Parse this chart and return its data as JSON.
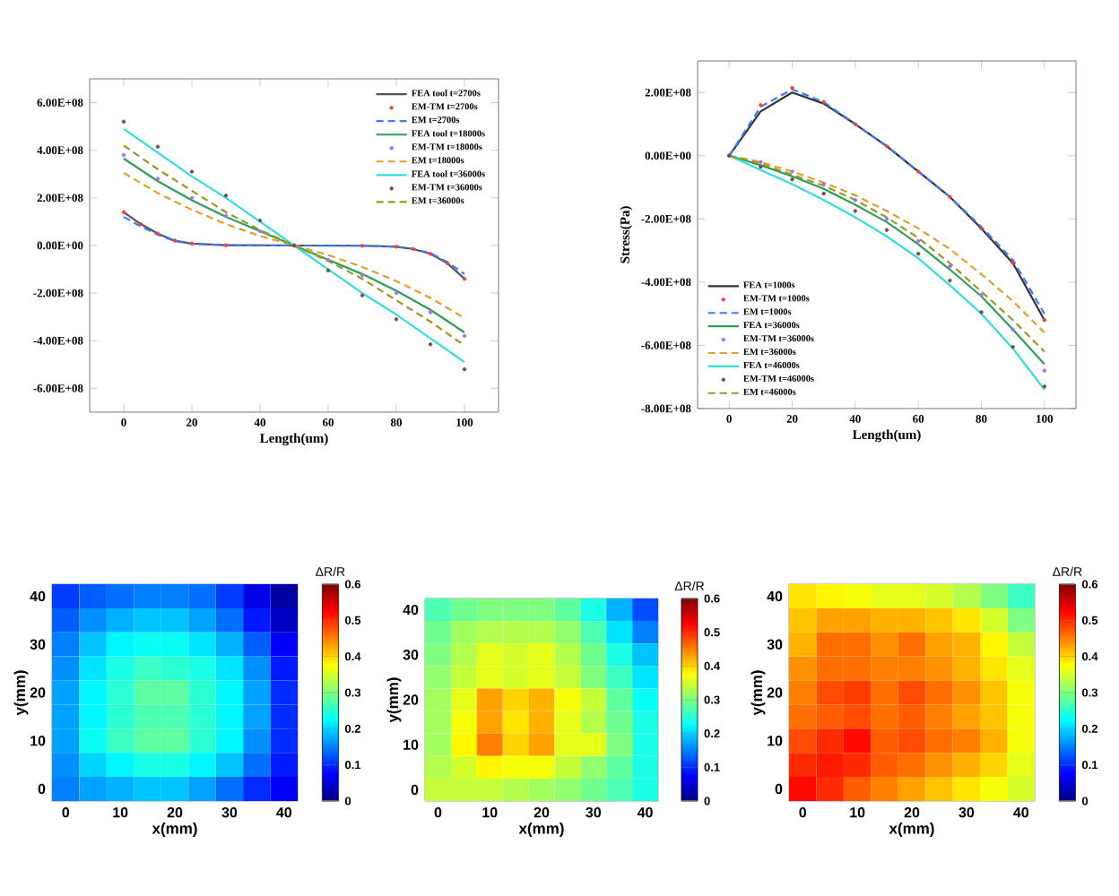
{
  "chart_data": [
    {
      "type": "line",
      "xlabel": "Length(um)",
      "xlim": [
        -10,
        110
      ],
      "xticks": [
        0,
        20,
        40,
        60,
        80,
        100
      ],
      "ylim": [
        -700000000.0,
        700000000.0
      ],
      "yticks": [
        {
          "value": -600000000.0,
          "label": "-6.00E+08"
        },
        {
          "value": -400000000.0,
          "label": "-4.00E+08"
        },
        {
          "value": -200000000.0,
          "label": "-2.00E+08"
        },
        {
          "value": 0,
          "label": "0.00E+00"
        },
        {
          "value": 200000000.0,
          "label": "2.00E+08"
        },
        {
          "value": 400000000.0,
          "label": "4.00E+08"
        },
        {
          "value": 600000000.0,
          "label": "6.00E+08"
        }
      ],
      "legend": "top right",
      "x": [
        0,
        10,
        20,
        30,
        40,
        50,
        60,
        70,
        80,
        90,
        100
      ],
      "series": [
        {
          "name": "FEA tool t=2700s",
          "color": "#555555",
          "x": [
            0,
            5,
            10,
            15,
            20,
            30,
            50,
            70,
            80,
            85,
            90,
            95,
            100
          ],
          "values": [
            140000000.0,
            90000000.0,
            50000000.0,
            20000000.0,
            8000000.0,
            1000000.0,
            0,
            -1000000.0,
            -5000000.0,
            -15000000.0,
            -35000000.0,
            -75000000.0,
            -140000000.0
          ]
        },
        {
          "name": "EM-TM t=2700s",
          "type": "scatter",
          "marker": "circle",
          "color": "#ff3b3b",
          "x": [
            0,
            5,
            10,
            15,
            20,
            30,
            50,
            70,
            80,
            85,
            90,
            95,
            100
          ],
          "values": [
            140000000.0,
            90000000.0,
            50000000.0,
            20000000.0,
            8000000.0,
            1000000.0,
            0,
            -1000000.0,
            -5000000.0,
            -15000000.0,
            -35000000.0,
            -75000000.0,
            -140000000.0
          ]
        },
        {
          "name": "EM t=2700s",
          "line_style": "dashed",
          "color": "#3a7bff",
          "x": [
            0,
            5,
            10,
            15,
            20,
            30,
            50,
            70,
            80,
            85,
            90,
            95,
            100
          ],
          "values": [
            120000000.0,
            80000000.0,
            45000000.0,
            18000000.0,
            7000000.0,
            1000000.0,
            0,
            -1000000.0,
            -5000000.0,
            -14000000.0,
            -32000000.0,
            -70000000.0,
            -120000000.0
          ]
        },
        {
          "name": "FEA tool t=18000s",
          "color": "#2ca05a",
          "values": [
            365000000.0,
            270000000.0,
            190000000.0,
            120000000.0,
            60000000.0,
            0,
            -60000000.0,
            -120000000.0,
            -190000000.0,
            -270000000.0,
            -365000000.0
          ]
        },
        {
          "name": "EM-TM t=18000s",
          "type": "scatter",
          "marker": "circle",
          "color": "#b366ff",
          "values": [
            380000000.0,
            280000000.0,
            200000000.0,
            125000000.0,
            60000000.0,
            0,
            -60000000.0,
            -125000000.0,
            -200000000.0,
            -280000000.0,
            -380000000.0
          ]
        },
        {
          "name": "EM t=18000s",
          "line_style": "dashed",
          "color": "#e0a030",
          "values": [
            305000000.0,
            220000000.0,
            150000000.0,
            90000000.0,
            40000000.0,
            0,
            -40000000.0,
            -90000000.0,
            -150000000.0,
            -220000000.0,
            -305000000.0
          ]
        },
        {
          "name": "FEA tool t=36000s",
          "color": "#33dddd",
          "values": [
            490000000.0,
            390000000.0,
            290000000.0,
            200000000.0,
            100000000.0,
            0,
            -100000000.0,
            -200000000.0,
            -290000000.0,
            -390000000.0,
            -490000000.0
          ]
        },
        {
          "name": "EM-TM t=36000s",
          "type": "scatter",
          "marker": "circle",
          "color": "#7a4a4a",
          "values": [
            520000000.0,
            415000000.0,
            310000000.0,
            210000000.0,
            105000000.0,
            0,
            -105000000.0,
            -210000000.0,
            -310000000.0,
            -415000000.0,
            -520000000.0
          ]
        },
        {
          "name": "EM t=36000s",
          "line_style": "dashed",
          "color": "#999922",
          "values": [
            420000000.0,
            320000000.0,
            230000000.0,
            140000000.0,
            65000000.0,
            0,
            -65000000.0,
            -140000000.0,
            -230000000.0,
            -320000000.0,
            -420000000.0
          ]
        }
      ]
    },
    {
      "type": "line",
      "xlabel": "Length(um)",
      "ylabel": "Stress(Pa)",
      "xlim": [
        -10,
        110
      ],
      "xticks": [
        0,
        20,
        40,
        60,
        80,
        100
      ],
      "ylim": [
        -800000000.0,
        300000000.0
      ],
      "yticks": [
        {
          "value": -800000000.0,
          "label": "-8.00E+08"
        },
        {
          "value": -600000000.0,
          "label": "-6.00E+08"
        },
        {
          "value": -400000000.0,
          "label": "-4.00E+08"
        },
        {
          "value": -200000000.0,
          "label": "-2.00E+08"
        },
        {
          "value": 0,
          "label": "0.00E+00"
        },
        {
          "value": 200000000.0,
          "label": "2.00E+08"
        }
      ],
      "legend": "bottom left",
      "x": [
        0,
        10,
        20,
        30,
        40,
        50,
        60,
        70,
        80,
        90,
        100
      ],
      "series": [
        {
          "name": "FEA t=1000s",
          "color": "#333333",
          "values": [
            0,
            140000000.0,
            200000000.0,
            165000000.0,
            100000000.0,
            30000000.0,
            -50000000.0,
            -130000000.0,
            -230000000.0,
            -340000000.0,
            -520000000.0
          ]
        },
        {
          "name": "EM-TM t=1000s",
          "type": "scatter",
          "marker": "circle",
          "color": "#ff3b3b",
          "values": [
            0,
            160000000.0,
            215000000.0,
            170000000.0,
            100000000.0,
            30000000.0,
            -50000000.0,
            -130000000.0,
            -230000000.0,
            -340000000.0,
            -520000000.0
          ]
        },
        {
          "name": "EM t=1000s",
          "line_style": "dashed",
          "color": "#3a7bff",
          "values": [
            0,
            155000000.0,
            210000000.0,
            170000000.0,
            100000000.0,
            30000000.0,
            -50000000.0,
            -130000000.0,
            -225000000.0,
            -330000000.0,
            -500000000.0
          ]
        },
        {
          "name": "FEA t=36000s",
          "color": "#2ca05a",
          "values": [
            0,
            -30000000.0,
            -65000000.0,
            -105000000.0,
            -155000000.0,
            -210000000.0,
            -280000000.0,
            -360000000.0,
            -445000000.0,
            -550000000.0,
            -660000000.0
          ]
        },
        {
          "name": "EM-TM t=36000s",
          "type": "scatter",
          "marker": "circle",
          "color": "#b366ff",
          "values": [
            0,
            -20000000.0,
            -50000000.0,
            -90000000.0,
            -140000000.0,
            -200000000.0,
            -270000000.0,
            -350000000.0,
            -440000000.0,
            -550000000.0,
            -680000000.0
          ]
        },
        {
          "name": "EM t=36000s",
          "line_style": "dashed",
          "color": "#e0a030",
          "values": [
            0,
            -20000000.0,
            -50000000.0,
            -85000000.0,
            -125000000.0,
            -175000000.0,
            -230000000.0,
            -295000000.0,
            -375000000.0,
            -460000000.0,
            -560000000.0
          ]
        },
        {
          "name": "FEA t=46000s",
          "color": "#33dddd",
          "values": [
            0,
            -45000000.0,
            -90000000.0,
            -140000000.0,
            -195000000.0,
            -255000000.0,
            -325000000.0,
            -410000000.0,
            -500000000.0,
            -610000000.0,
            -740000000.0
          ]
        },
        {
          "name": "EM-TM t=46000s",
          "type": "scatter",
          "marker": "circle",
          "color": "#7a4a4a",
          "values": [
            0,
            -35000000.0,
            -75000000.0,
            -120000000.0,
            -175000000.0,
            -235000000.0,
            -310000000.0,
            -395000000.0,
            -495000000.0,
            -605000000.0,
            -730000000.0
          ]
        },
        {
          "name": "EM t=46000s",
          "line_style": "dashed",
          "color": "#999922",
          "values": [
            0,
            -25000000.0,
            -60000000.0,
            -95000000.0,
            -140000000.0,
            -195000000.0,
            -260000000.0,
            -340000000.0,
            -430000000.0,
            -520000000.0,
            -620000000.0
          ]
        }
      ]
    },
    {
      "type": "heatmap",
      "xlabel": "x(mm)",
      "ylabel": "y(mm)",
      "clabel": "ΔR/R",
      "clim": [
        0,
        0.6
      ],
      "cticks": [
        0,
        0.1,
        0.2,
        0.3,
        0.4,
        0.5,
        0.6
      ],
      "categories": [
        "0",
        null,
        "10",
        null,
        "20",
        null,
        "30",
        null,
        "40"
      ],
      "y_categories": [
        "40",
        null,
        "30",
        null,
        "20",
        null,
        "10",
        null,
        "0"
      ],
      "cells": [
        [
          0.11,
          0.13,
          0.14,
          0.15,
          0.15,
          0.14,
          0.11,
          0.06,
          0.02
        ],
        [
          0.13,
          0.16,
          0.18,
          0.19,
          0.19,
          0.17,
          0.14,
          0.09,
          0.04
        ],
        [
          0.15,
          0.19,
          0.22,
          0.23,
          0.23,
          0.21,
          0.18,
          0.13,
          0.07
        ],
        [
          0.16,
          0.21,
          0.24,
          0.26,
          0.25,
          0.24,
          0.21,
          0.16,
          0.09
        ],
        [
          0.17,
          0.22,
          0.25,
          0.28,
          0.28,
          0.25,
          0.22,
          0.17,
          0.1
        ],
        [
          0.17,
          0.22,
          0.25,
          0.27,
          0.27,
          0.25,
          0.22,
          0.17,
          0.1
        ],
        [
          0.17,
          0.23,
          0.26,
          0.28,
          0.28,
          0.25,
          0.22,
          0.16,
          0.1
        ],
        [
          0.16,
          0.2,
          0.22,
          0.24,
          0.24,
          0.22,
          0.19,
          0.14,
          0.09
        ],
        [
          0.15,
          0.17,
          0.18,
          0.19,
          0.19,
          0.17,
          0.14,
          0.1,
          0.07
        ]
      ]
    },
    {
      "type": "heatmap",
      "xlabel": "x(mm)",
      "ylabel": "y(mm)",
      "clabel": "ΔR/R",
      "clim": [
        0,
        0.6
      ],
      "cticks": [
        0,
        0.1,
        0.2,
        0.3,
        0.4,
        0.5,
        0.6
      ],
      "categories": [
        "0",
        null,
        "10",
        null,
        "20",
        null,
        "30",
        null,
        "40"
      ],
      "y_categories": [
        "40",
        null,
        "30",
        null,
        "20",
        null,
        "10",
        null,
        "0"
      ],
      "cells": [
        [
          0.27,
          0.29,
          0.3,
          0.3,
          0.3,
          0.28,
          0.24,
          0.18,
          0.12
        ],
        [
          0.29,
          0.32,
          0.33,
          0.33,
          0.33,
          0.31,
          0.27,
          0.21,
          0.15
        ],
        [
          0.3,
          0.33,
          0.36,
          0.35,
          0.36,
          0.33,
          0.29,
          0.24,
          0.19
        ],
        [
          0.31,
          0.34,
          0.36,
          0.35,
          0.36,
          0.34,
          0.3,
          0.26,
          0.21
        ],
        [
          0.32,
          0.36,
          0.43,
          0.4,
          0.42,
          0.37,
          0.34,
          0.28,
          0.23
        ],
        [
          0.32,
          0.37,
          0.43,
          0.39,
          0.42,
          0.36,
          0.33,
          0.29,
          0.24
        ],
        [
          0.32,
          0.38,
          0.45,
          0.4,
          0.43,
          0.36,
          0.36,
          0.3,
          0.24
        ],
        [
          0.33,
          0.35,
          0.38,
          0.37,
          0.37,
          0.34,
          0.31,
          0.28,
          0.24
        ],
        [
          0.34,
          0.34,
          0.34,
          0.33,
          0.32,
          0.31,
          0.29,
          0.27,
          0.24
        ]
      ]
    },
    {
      "type": "heatmap",
      "xlabel": "x(mm)",
      "ylabel": "y(mm)",
      "clabel": "ΔR/R",
      "clim": [
        0,
        0.6
      ],
      "cticks": [
        0,
        0.1,
        0.2,
        0.3,
        0.4,
        0.5,
        0.6
      ],
      "categories": [
        "0",
        null,
        "10",
        null,
        "20",
        null,
        "30",
        null,
        "40"
      ],
      "y_categories": [
        "40",
        null,
        "30",
        null,
        "20",
        null,
        "10",
        null,
        "0"
      ],
      "cells": [
        [
          0.39,
          0.38,
          0.37,
          0.36,
          0.36,
          0.35,
          0.33,
          0.3,
          0.26
        ],
        [
          0.41,
          0.43,
          0.43,
          0.42,
          0.42,
          0.41,
          0.39,
          0.35,
          0.3
        ],
        [
          0.42,
          0.46,
          0.46,
          0.44,
          0.46,
          0.43,
          0.42,
          0.38,
          0.34
        ],
        [
          0.44,
          0.46,
          0.46,
          0.45,
          0.45,
          0.44,
          0.42,
          0.39,
          0.36
        ],
        [
          0.45,
          0.48,
          0.49,
          0.46,
          0.48,
          0.46,
          0.44,
          0.41,
          0.37
        ],
        [
          0.46,
          0.47,
          0.48,
          0.46,
          0.47,
          0.45,
          0.43,
          0.41,
          0.37
        ],
        [
          0.48,
          0.5,
          0.52,
          0.47,
          0.48,
          0.46,
          0.45,
          0.42,
          0.37
        ],
        [
          0.5,
          0.51,
          0.5,
          0.47,
          0.46,
          0.44,
          0.42,
          0.4,
          0.36
        ],
        [
          0.52,
          0.5,
          0.47,
          0.45,
          0.43,
          0.41,
          0.39,
          0.37,
          0.35
        ]
      ]
    }
  ]
}
